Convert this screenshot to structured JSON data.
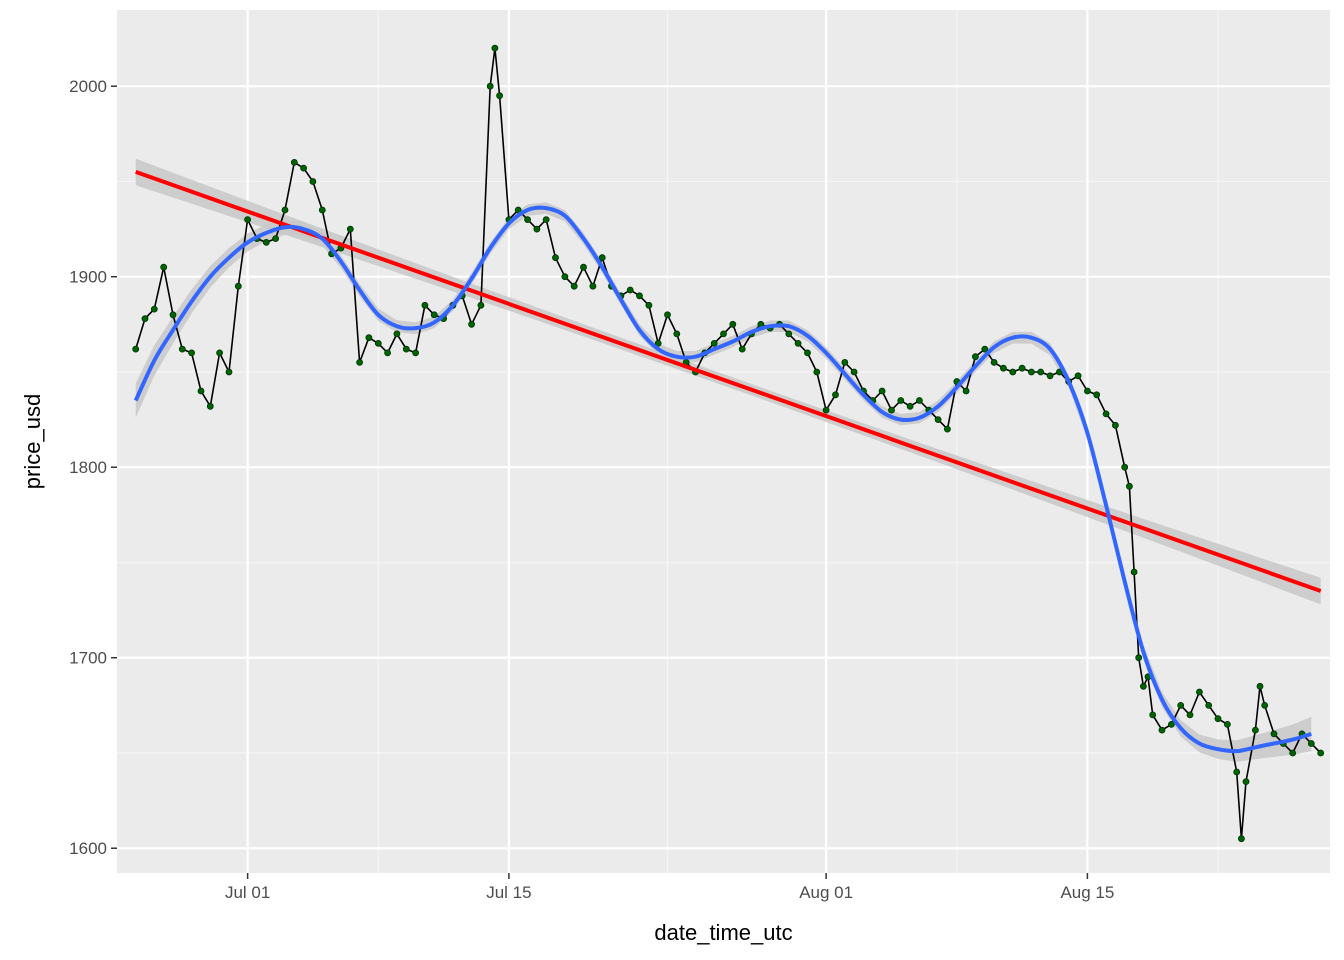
{
  "chart_data": {
    "type": "line",
    "title": "",
    "xlabel": "date_time_utc",
    "ylabel": "price_usd",
    "x_type": "date",
    "xlim": [
      "2023-06-24",
      "2023-08-28"
    ],
    "ylim": [
      1587,
      2040
    ],
    "x_ticks": [
      {
        "value": "2023-07-01",
        "label": "Jul 01"
      },
      {
        "value": "2023-07-15",
        "label": "Jul 15"
      },
      {
        "value": "2023-08-01",
        "label": "Aug 01"
      },
      {
        "value": "2023-08-15",
        "label": "Aug 15"
      }
    ],
    "y_ticks": [
      1600,
      1700,
      1800,
      1900,
      2000
    ],
    "grid": true,
    "panel_background": "#EBEBEB",
    "series": [
      {
        "role": "observed price line with point markers",
        "line_color": "#000000",
        "point_color": "#006400",
        "points": [
          [
            "2023-06-25",
            1862
          ],
          [
            "2023-06-25 12:00",
            1878
          ],
          [
            "2023-06-26",
            1883
          ],
          [
            "2023-06-26 12:00",
            1905
          ],
          [
            "2023-06-27",
            1880
          ],
          [
            "2023-06-27 12:00",
            1862
          ],
          [
            "2023-06-28",
            1860
          ],
          [
            "2023-06-28 12:00",
            1840
          ],
          [
            "2023-06-29",
            1832
          ],
          [
            "2023-06-29 12:00",
            1860
          ],
          [
            "2023-06-30",
            1850
          ],
          [
            "2023-06-30 12:00",
            1895
          ],
          [
            "2023-07-01",
            1930
          ],
          [
            "2023-07-01 12:00",
            1920
          ],
          [
            "2023-07-02",
            1918
          ],
          [
            "2023-07-02 12:00",
            1920
          ],
          [
            "2023-07-03",
            1935
          ],
          [
            "2023-07-03 12:00",
            1960
          ],
          [
            "2023-07-04",
            1957
          ],
          [
            "2023-07-04 12:00",
            1950
          ],
          [
            "2023-07-05",
            1935
          ],
          [
            "2023-07-05 12:00",
            1912
          ],
          [
            "2023-07-06",
            1915
          ],
          [
            "2023-07-06 12:00",
            1925
          ],
          [
            "2023-07-07",
            1855
          ],
          [
            "2023-07-07 12:00",
            1868
          ],
          [
            "2023-07-08",
            1865
          ],
          [
            "2023-07-08 12:00",
            1860
          ],
          [
            "2023-07-09",
            1870
          ],
          [
            "2023-07-09 12:00",
            1862
          ],
          [
            "2023-07-10",
            1860
          ],
          [
            "2023-07-10 12:00",
            1885
          ],
          [
            "2023-07-11",
            1880
          ],
          [
            "2023-07-11 12:00",
            1878
          ],
          [
            "2023-07-12",
            1885
          ],
          [
            "2023-07-12 12:00",
            1890
          ],
          [
            "2023-07-13",
            1875
          ],
          [
            "2023-07-13 12:00",
            1885
          ],
          [
            "2023-07-14",
            2000
          ],
          [
            "2023-07-14 06:00",
            2020
          ],
          [
            "2023-07-14 12:00",
            1995
          ],
          [
            "2023-07-15",
            1930
          ],
          [
            "2023-07-15 12:00",
            1935
          ],
          [
            "2023-07-16",
            1930
          ],
          [
            "2023-07-16 12:00",
            1925
          ],
          [
            "2023-07-17",
            1930
          ],
          [
            "2023-07-17 12:00",
            1910
          ],
          [
            "2023-07-18",
            1900
          ],
          [
            "2023-07-18 12:00",
            1895
          ],
          [
            "2023-07-19",
            1905
          ],
          [
            "2023-07-19 12:00",
            1895
          ],
          [
            "2023-07-20",
            1910
          ],
          [
            "2023-07-20 12:00",
            1895
          ],
          [
            "2023-07-21",
            1890
          ],
          [
            "2023-07-21 12:00",
            1893
          ],
          [
            "2023-07-22",
            1890
          ],
          [
            "2023-07-22 12:00",
            1885
          ],
          [
            "2023-07-23",
            1865
          ],
          [
            "2023-07-23 12:00",
            1880
          ],
          [
            "2023-07-24",
            1870
          ],
          [
            "2023-07-24 12:00",
            1855
          ],
          [
            "2023-07-25",
            1850
          ],
          [
            "2023-07-25 12:00",
            1860
          ],
          [
            "2023-07-26",
            1865
          ],
          [
            "2023-07-26 12:00",
            1870
          ],
          [
            "2023-07-27",
            1875
          ],
          [
            "2023-07-27 12:00",
            1862
          ],
          [
            "2023-07-28",
            1870
          ],
          [
            "2023-07-28 12:00",
            1875
          ],
          [
            "2023-07-29",
            1873
          ],
          [
            "2023-07-29 12:00",
            1875
          ],
          [
            "2023-07-30",
            1870
          ],
          [
            "2023-07-30 12:00",
            1865
          ],
          [
            "2023-07-31",
            1860
          ],
          [
            "2023-07-31 12:00",
            1850
          ],
          [
            "2023-08-01",
            1830
          ],
          [
            "2023-08-01 12:00",
            1838
          ],
          [
            "2023-08-02",
            1855
          ],
          [
            "2023-08-02 12:00",
            1850
          ],
          [
            "2023-08-03",
            1840
          ],
          [
            "2023-08-03 12:00",
            1835
          ],
          [
            "2023-08-04",
            1840
          ],
          [
            "2023-08-04 12:00",
            1830
          ],
          [
            "2023-08-05",
            1835
          ],
          [
            "2023-08-05 12:00",
            1832
          ],
          [
            "2023-08-06",
            1835
          ],
          [
            "2023-08-06 12:00",
            1830
          ],
          [
            "2023-08-07",
            1825
          ],
          [
            "2023-08-07 12:00",
            1820
          ],
          [
            "2023-08-08",
            1845
          ],
          [
            "2023-08-08 12:00",
            1840
          ],
          [
            "2023-08-09",
            1858
          ],
          [
            "2023-08-09 12:00",
            1862
          ],
          [
            "2023-08-10",
            1855
          ],
          [
            "2023-08-10 12:00",
            1852
          ],
          [
            "2023-08-11",
            1850
          ],
          [
            "2023-08-11 12:00",
            1852
          ],
          [
            "2023-08-12",
            1850
          ],
          [
            "2023-08-12 12:00",
            1850
          ],
          [
            "2023-08-13",
            1848
          ],
          [
            "2023-08-13 12:00",
            1850
          ],
          [
            "2023-08-14",
            1845
          ],
          [
            "2023-08-14 12:00",
            1848
          ],
          [
            "2023-08-15",
            1840
          ],
          [
            "2023-08-15 12:00",
            1838
          ],
          [
            "2023-08-16",
            1828
          ],
          [
            "2023-08-16 12:00",
            1822
          ],
          [
            "2023-08-17",
            1800
          ],
          [
            "2023-08-17 06:00",
            1790
          ],
          [
            "2023-08-17 12:00",
            1745
          ],
          [
            "2023-08-17 18:00",
            1700
          ],
          [
            "2023-08-18",
            1685
          ],
          [
            "2023-08-18 06:00",
            1690
          ],
          [
            "2023-08-18 12:00",
            1670
          ],
          [
            "2023-08-19",
            1662
          ],
          [
            "2023-08-19 12:00",
            1665
          ],
          [
            "2023-08-20",
            1675
          ],
          [
            "2023-08-20 12:00",
            1670
          ],
          [
            "2023-08-21",
            1682
          ],
          [
            "2023-08-21 12:00",
            1675
          ],
          [
            "2023-08-22",
            1668
          ],
          [
            "2023-08-22 12:00",
            1665
          ],
          [
            "2023-08-23",
            1640
          ],
          [
            "2023-08-23 06:00",
            1605
          ],
          [
            "2023-08-23 12:00",
            1635
          ],
          [
            "2023-08-24",
            1662
          ],
          [
            "2023-08-24 06:00",
            1685
          ],
          [
            "2023-08-24 12:00",
            1675
          ],
          [
            "2023-08-25",
            1660
          ],
          [
            "2023-08-25 12:00",
            1655
          ],
          [
            "2023-08-26",
            1650
          ],
          [
            "2023-08-26 12:00",
            1660
          ],
          [
            "2023-08-27",
            1655
          ],
          [
            "2023-08-27 12:00",
            1650
          ]
        ]
      },
      {
        "role": "linear trend",
        "color": "#FF0000",
        "band_color": "#C8C8C8",
        "points": [
          [
            "2023-06-25",
            1955
          ],
          [
            "2023-08-27 12:00",
            1735
          ]
        ]
      },
      {
        "role": "smoothed trend",
        "color": "#3366FF",
        "band_color": "#C8C8C8",
        "points": [
          [
            "2023-06-25",
            1835
          ],
          [
            "2023-06-26",
            1856
          ],
          [
            "2023-06-27",
            1872
          ],
          [
            "2023-06-28",
            1887
          ],
          [
            "2023-06-29",
            1900
          ],
          [
            "2023-06-30",
            1910
          ],
          [
            "2023-07-01",
            1918
          ],
          [
            "2023-07-02",
            1923
          ],
          [
            "2023-07-03",
            1926
          ],
          [
            "2023-07-04",
            1925
          ],
          [
            "2023-07-05",
            1920
          ],
          [
            "2023-07-06",
            1908
          ],
          [
            "2023-07-07",
            1893
          ],
          [
            "2023-07-08",
            1880
          ],
          [
            "2023-07-09",
            1874
          ],
          [
            "2023-07-10",
            1873
          ],
          [
            "2023-07-11",
            1876
          ],
          [
            "2023-07-12",
            1885
          ],
          [
            "2023-07-13",
            1899
          ],
          [
            "2023-07-14",
            1915
          ],
          [
            "2023-07-15",
            1928
          ],
          [
            "2023-07-16",
            1935
          ],
          [
            "2023-07-17",
            1936
          ],
          [
            "2023-07-18",
            1932
          ],
          [
            "2023-07-19",
            1920
          ],
          [
            "2023-07-20",
            1905
          ],
          [
            "2023-07-21",
            1888
          ],
          [
            "2023-07-22",
            1872
          ],
          [
            "2023-07-23",
            1862
          ],
          [
            "2023-07-24",
            1858
          ],
          [
            "2023-07-25",
            1858
          ],
          [
            "2023-07-26",
            1862
          ],
          [
            "2023-07-27",
            1866
          ],
          [
            "2023-07-28",
            1871
          ],
          [
            "2023-07-29",
            1874
          ],
          [
            "2023-07-30",
            1874
          ],
          [
            "2023-07-31",
            1869
          ],
          [
            "2023-08-01",
            1860
          ],
          [
            "2023-08-02",
            1849
          ],
          [
            "2023-08-03",
            1838
          ],
          [
            "2023-08-04",
            1829
          ],
          [
            "2023-08-05",
            1825
          ],
          [
            "2023-08-06",
            1826
          ],
          [
            "2023-08-07",
            1832
          ],
          [
            "2023-08-08",
            1842
          ],
          [
            "2023-08-09",
            1853
          ],
          [
            "2023-08-10",
            1863
          ],
          [
            "2023-08-11",
            1868
          ],
          [
            "2023-08-12",
            1868
          ],
          [
            "2023-08-13",
            1862
          ],
          [
            "2023-08-14",
            1845
          ],
          [
            "2023-08-15",
            1818
          ],
          [
            "2023-08-16",
            1780
          ],
          [
            "2023-08-17",
            1740
          ],
          [
            "2023-08-18",
            1703
          ],
          [
            "2023-08-19",
            1678
          ],
          [
            "2023-08-20",
            1663
          ],
          [
            "2023-08-21",
            1655
          ],
          [
            "2023-08-22",
            1652
          ],
          [
            "2023-08-23",
            1651
          ],
          [
            "2023-08-24",
            1653
          ],
          [
            "2023-08-25",
            1655
          ],
          [
            "2023-08-26",
            1657
          ],
          [
            "2023-08-27",
            1660
          ]
        ]
      }
    ]
  }
}
